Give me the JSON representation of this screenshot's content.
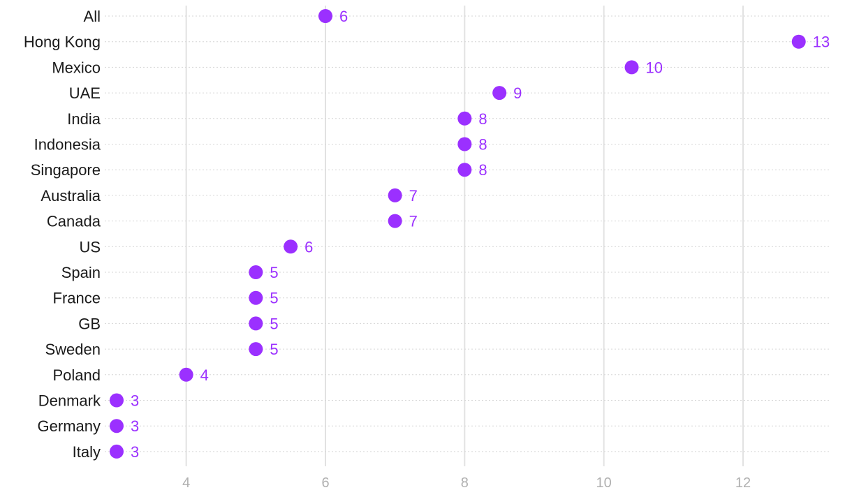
{
  "chart_data": {
    "type": "scatter",
    "orientation": "horizontal-dot",
    "categories": [
      "All",
      "Hong Kong",
      "Mexico",
      "UAE",
      "India",
      "Indonesia",
      "Singapore",
      "Australia",
      "Canada",
      "US",
      "Spain",
      "France",
      "GB",
      "Sweden",
      "Poland",
      "Denmark",
      "Germany",
      "Italy"
    ],
    "values": [
      6,
      12.8,
      10.4,
      8.5,
      8,
      8,
      8,
      7,
      7,
      5.5,
      5,
      5,
      5,
      5,
      4,
      3,
      3,
      3
    ],
    "value_labels": [
      "6",
      "13",
      "10",
      "9",
      "8",
      "8",
      "8",
      "7",
      "7",
      "6",
      "5",
      "5",
      "5",
      "5",
      "4",
      "3",
      "3",
      "3"
    ],
    "x_ticks": [
      4,
      6,
      8,
      10,
      12
    ],
    "x_tick_labels": [
      "4",
      "6",
      "8",
      "10",
      "12"
    ],
    "xlim": [
      3,
      13.25
    ],
    "grid": "vertical solid at ticks; horizontal dotted per row",
    "title": "",
    "xlabel": "",
    "ylabel": "",
    "colors": {
      "dot": "#9b30ff",
      "value_label": "#9b30ff",
      "category_label": "#1a1a1a",
      "tick_label": "#b0b0b0",
      "grid": "#e2e2e2"
    }
  }
}
